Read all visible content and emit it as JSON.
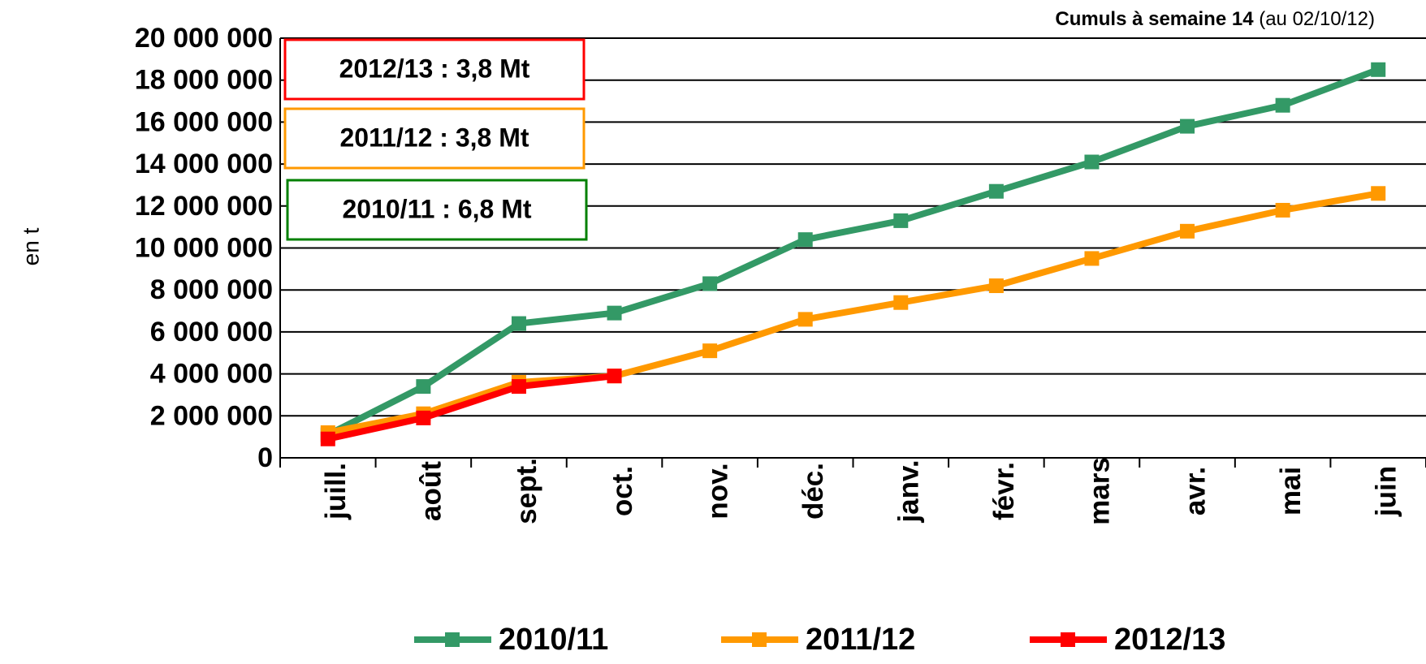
{
  "chart_data": {
    "type": "line",
    "y_label": "en t",
    "annotation": {
      "bold": "Cumuls à semaine 14",
      "note": "(au 02/10/12)"
    },
    "boxes": [
      {
        "text": "2012/13 : 3,8 Mt",
        "color": "#ff0000"
      },
      {
        "text": "2011/12 : 3,8 Mt",
        "color": "#ff9900"
      },
      {
        "text": "2010/11 : 6,8 Mt",
        "color": "#008000"
      }
    ],
    "categories": [
      "juill.",
      "août",
      "sept.",
      "oct.",
      "nov.",
      "déc.",
      "janv.",
      "févr.",
      "mars",
      "avr.",
      "mai",
      "juin"
    ],
    "series": [
      {
        "name": "2010/11",
        "color": "#339966",
        "values": [
          1100000,
          3400000,
          6400000,
          6900000,
          8300000,
          10400000,
          11300000,
          12700000,
          14100000,
          15800000,
          16800000,
          18500000
        ]
      },
      {
        "name": "2011/12",
        "color": "#ff9900",
        "values": [
          1200000,
          2100000,
          3600000,
          3900000,
          5100000,
          6600000,
          7400000,
          8200000,
          9500000,
          10800000,
          11800000,
          12600000
        ]
      },
      {
        "name": "2012/13",
        "color": "#ff0000",
        "values": [
          900000,
          1900000,
          3400000,
          3900000,
          null,
          null,
          null,
          null,
          null,
          null,
          null,
          null
        ]
      }
    ],
    "ylim": [
      0,
      20000000
    ],
    "yticks": [
      0,
      {
        "value": 2000000,
        "label": "2 000 000"
      },
      {
        "value": 4000000,
        "label": "4 000 000"
      },
      {
        "value": 6000000,
        "label": "6 000 000"
      },
      {
        "value": 8000000,
        "label": "8 000 000"
      },
      {
        "value": 10000000,
        "label": "10 000 000"
      },
      {
        "value": 12000000,
        "label": "12 000 000"
      },
      {
        "value": 14000000,
        "label": "14 000 000"
      },
      {
        "value": 16000000,
        "label": "16 000 000"
      },
      {
        "value": 18000000,
        "label": "18 000 000"
      },
      {
        "value": 20000000,
        "label": "20 000 000"
      }
    ],
    "grid": true,
    "legend": "bottom"
  }
}
